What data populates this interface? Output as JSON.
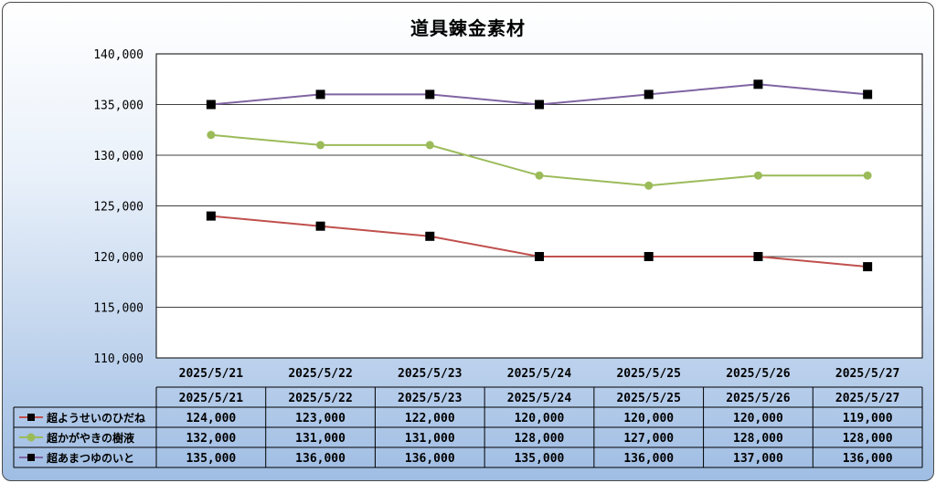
{
  "chart_data": {
    "type": "line",
    "title": "道具錬金素材",
    "categories": [
      "2025/5/21",
      "2025/5/22",
      "2025/5/23",
      "2025/5/24",
      "2025/5/25",
      "2025/5/26",
      "2025/5/27"
    ],
    "ylim": [
      110000,
      140000
    ],
    "yticks": [
      110000,
      115000,
      120000,
      125000,
      130000,
      135000,
      140000
    ],
    "ytick_labels": [
      "110,000",
      "115,000",
      "120,000",
      "125,000",
      "130,000",
      "135,000",
      "140,000"
    ],
    "grid": true,
    "legend": "data-table",
    "series": [
      {
        "name": "超ようせいのひだね",
        "color": "#c0504d",
        "marker": "square",
        "values": [
          124000,
          123000,
          122000,
          120000,
          120000,
          120000,
          119000
        ],
        "labels": [
          "124,000",
          "123,000",
          "122,000",
          "120,000",
          "120,000",
          "120,000",
          "119,000"
        ]
      },
      {
        "name": "超かがやきの樹液",
        "color": "#9bbb59",
        "marker": "circle",
        "values": [
          132000,
          131000,
          131000,
          128000,
          127000,
          128000,
          128000
        ],
        "labels": [
          "132,000",
          "131,000",
          "131,000",
          "128,000",
          "127,000",
          "128,000",
          "128,000"
        ]
      },
      {
        "name": "超あまつゆのいと",
        "color": "#8064a2",
        "marker": "square",
        "values": [
          135000,
          136000,
          136000,
          135000,
          136000,
          137000,
          136000
        ],
        "labels": [
          "135,000",
          "136,000",
          "136,000",
          "135,000",
          "136,000",
          "137,000",
          "136,000"
        ]
      }
    ]
  }
}
